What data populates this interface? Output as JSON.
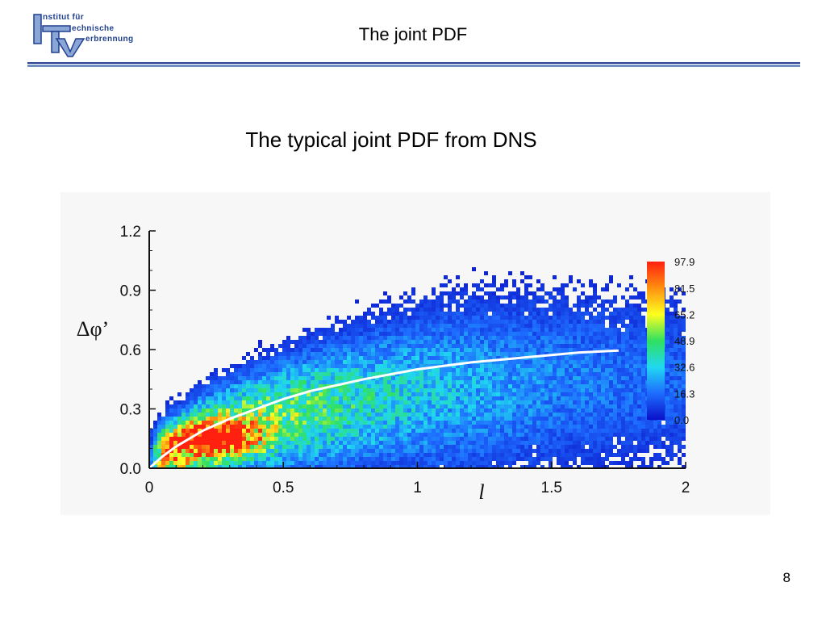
{
  "header": {
    "logo": {
      "letters": "ITV",
      "line1": "nstitut für",
      "line2": "echnische",
      "line3": "erbrennung"
    },
    "title": "The joint PDF"
  },
  "subtitle": "The typical joint PDF from DNS",
  "page_number": "8",
  "colors": {
    "brand": "#2a3f93",
    "rule_light": "#6f8fc0",
    "fit_curve": "#ffffff"
  },
  "chart_data": {
    "type": "heatmap",
    "xlabel": "l",
    "ylabel": "Δφ’",
    "xlim": [
      0,
      2
    ],
    "ylim": [
      0,
      1.2
    ],
    "xticks": [
      "0",
      "0.5",
      "1",
      "1.5",
      "2"
    ],
    "yticks": [
      "0.0",
      "0.3",
      "0.6",
      "0.9",
      "1.2"
    ],
    "legend_position": "right",
    "colorbar": {
      "min": 0.0,
      "max": 97.9,
      "ticks": [
        "97.9",
        "81.5",
        "65.2",
        "48.9",
        "32.6",
        "16.3",
        "0.0"
      ],
      "colors": [
        "#0a10c8",
        "#1e6cff",
        "#20d8f0",
        "#30e060",
        "#ffff20",
        "#ff9010",
        "#ff2010"
      ]
    },
    "density_peak": {
      "x": 0.25,
      "y": 0.15
    },
    "fit_curve": {
      "x": [
        0.0,
        0.05,
        0.1,
        0.2,
        0.3,
        0.4,
        0.5,
        0.6,
        0.8,
        1.0,
        1.2,
        1.4,
        1.6,
        1.75
      ],
      "y": [
        0.0,
        0.06,
        0.11,
        0.19,
        0.25,
        0.3,
        0.35,
        0.39,
        0.45,
        0.5,
        0.535,
        0.56,
        0.585,
        0.595
      ]
    }
  }
}
